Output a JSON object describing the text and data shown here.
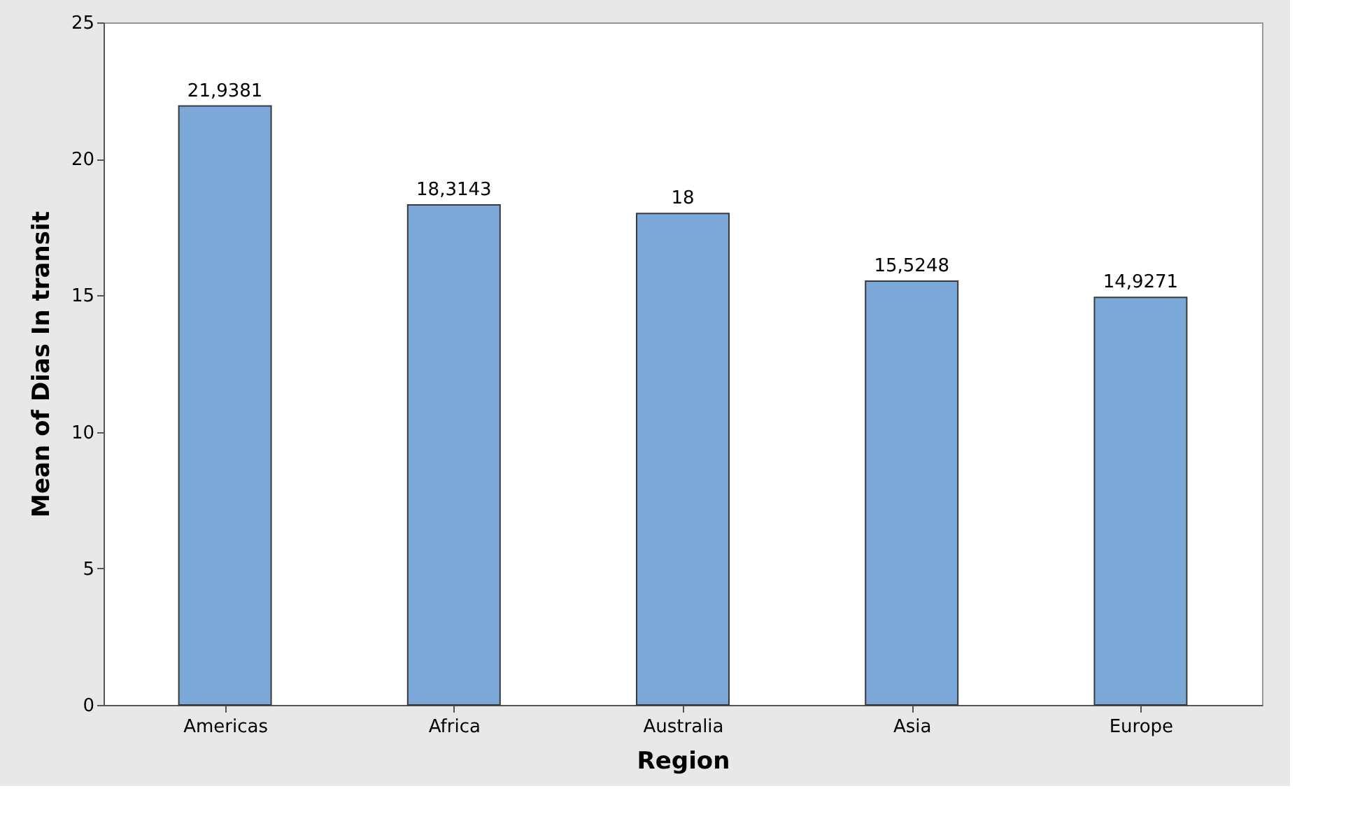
{
  "chart_data": {
    "type": "bar",
    "xlabel": "Region",
    "ylabel": "Mean of Dias In transit",
    "categories": [
      "Americas",
      "Africa",
      "Australia",
      "Asia",
      "Europe"
    ],
    "values": [
      21.9381,
      18.3143,
      18,
      15.5248,
      14.9271
    ],
    "value_labels": [
      "21,9381",
      "18,3143",
      "18",
      "15,5248",
      "14,9271"
    ],
    "color": "#7ba7d9",
    "ylim": [
      0,
      25
    ],
    "yticks": [
      0,
      5,
      10,
      15,
      20,
      25
    ],
    "grid": false
  }
}
